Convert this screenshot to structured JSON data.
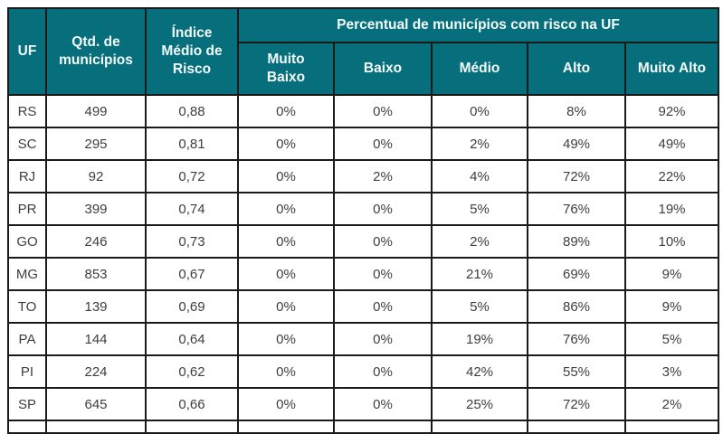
{
  "chart_data": {
    "type": "table",
    "group_header": "Percentual de municípios com risco na UF",
    "columns": [
      "UF",
      "Qtd. de municípios",
      "Índice Médio de Risco",
      "Muito Baixo",
      "Baixo",
      "Médio",
      "Alto",
      "Muito Alto"
    ],
    "rows": [
      [
        "RS",
        "499",
        "0,88",
        "0%",
        "0%",
        "0%",
        "8%",
        "92%"
      ],
      [
        "SC",
        "295",
        "0,81",
        "0%",
        "0%",
        "2%",
        "49%",
        "49%"
      ],
      [
        "RJ",
        "92",
        "0,72",
        "0%",
        "2%",
        "4%",
        "72%",
        "22%"
      ],
      [
        "PR",
        "399",
        "0,74",
        "0%",
        "0%",
        "5%",
        "76%",
        "19%"
      ],
      [
        "GO",
        "246",
        "0,73",
        "0%",
        "0%",
        "2%",
        "89%",
        "10%"
      ],
      [
        "MG",
        "853",
        "0,67",
        "0%",
        "0%",
        "21%",
        "69%",
        "9%"
      ],
      [
        "TO",
        "139",
        "0,69",
        "0%",
        "0%",
        "5%",
        "86%",
        "9%"
      ],
      [
        "PA",
        "144",
        "0,64",
        "0%",
        "0%",
        "19%",
        "76%",
        "5%"
      ],
      [
        "PI",
        "224",
        "0,62",
        "0%",
        "0%",
        "42%",
        "55%",
        "3%"
      ],
      [
        "SP",
        "645",
        "0,66",
        "0%",
        "0%",
        "25%",
        "72%",
        "2%"
      ]
    ],
    "row_keys": [
      "uf",
      "qtd-municipios",
      "indice-medio-risco",
      "muito-baixo",
      "baixo",
      "medio",
      "alto",
      "muito-alto"
    ],
    "colors": {
      "header_bg": "#076e7c",
      "header_text": "#f2fafa",
      "border": "#1a1a1a",
      "cell_text": "#3e3e3e",
      "background": "#ffffff"
    }
  }
}
